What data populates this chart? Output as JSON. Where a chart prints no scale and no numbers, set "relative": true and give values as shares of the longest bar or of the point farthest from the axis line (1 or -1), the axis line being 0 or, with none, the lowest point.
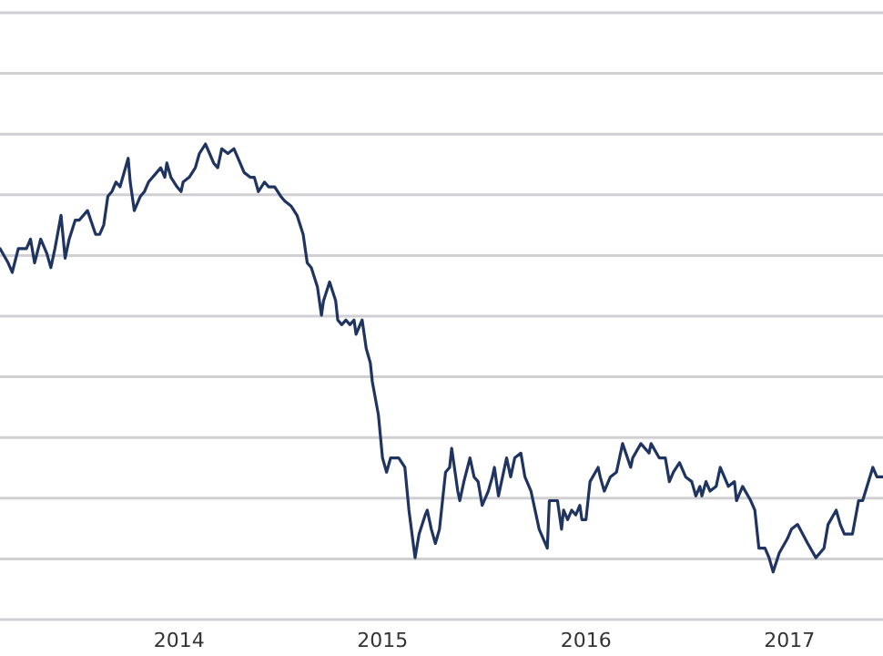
{
  "chart_data": {
    "type": "line",
    "relative": true,
    "grid": "y",
    "xlim": [
      2013.12,
      2017.46
    ],
    "xticks": [
      2014,
      2015,
      2016,
      2017
    ],
    "x": [
      2013.12,
      2013.16,
      2013.18,
      2013.21,
      2013.25,
      2013.27,
      2013.29,
      2013.32,
      2013.35,
      2013.37,
      2013.39,
      2013.42,
      2013.44,
      2013.46,
      2013.49,
      2013.51,
      2013.55,
      2013.59,
      2013.61,
      2013.63,
      2013.65,
      2013.67,
      2013.69,
      2013.71,
      2013.75,
      2013.76,
      2013.78,
      2013.81,
      2013.83,
      2013.85,
      2013.89,
      2013.91,
      2013.93,
      2013.94,
      2013.96,
      2013.99,
      2014.01,
      2014.02,
      2014.05,
      2014.08,
      2014.1,
      2014.13,
      2014.15,
      2014.17,
      2014.19,
      2014.21,
      2014.24,
      2014.27,
      2014.29,
      2014.32,
      2014.35,
      2014.37,
      2014.39,
      2014.42,
      2014.44,
      2014.47,
      2014.5,
      2014.52,
      2014.55,
      2014.58,
      2014.61,
      2014.63,
      2014.65,
      2014.68,
      2014.7,
      2014.71,
      2014.74,
      2014.77,
      2014.78,
      2014.8,
      2014.82,
      2014.84,
      2014.86,
      2014.87,
      2014.9,
      2014.92,
      2014.94,
      2014.95,
      2014.98,
      2015.0,
      2015.02,
      2015.04,
      2015.08,
      2015.11,
      2015.13,
      2015.16,
      2015.18,
      2015.21,
      2015.22,
      2015.24,
      2015.26,
      2015.28,
      2015.29,
      2015.31,
      2015.33,
      2015.34,
      2015.37,
      2015.38,
      2015.4,
      2015.43,
      2015.45,
      2015.47,
      2015.49,
      2015.52,
      2015.54,
      2015.55,
      2015.57,
      2015.61,
      2015.63,
      2015.65,
      2015.68,
      2015.7,
      2015.72,
      2015.73,
      2015.77,
      2015.81,
      2015.82,
      2015.86,
      2015.88,
      2015.89,
      2015.91,
      2015.93,
      2015.95,
      2015.97,
      2015.98,
      2016.0,
      2016.02,
      2016.06,
      2016.07,
      2016.09,
      2016.12,
      2016.15,
      2016.18,
      2016.22,
      2016.23,
      2016.27,
      2016.31,
      2016.32,
      2016.36,
      2016.39,
      2016.41,
      2016.43,
      2016.46,
      2016.49,
      2016.52,
      2016.54,
      2016.56,
      2016.57,
      2016.59,
      2016.61,
      2016.64,
      2016.66,
      2016.68,
      2016.7,
      2016.73,
      2016.74,
      2016.77,
      2016.81,
      2016.83,
      2016.85,
      2016.88,
      2016.9,
      2016.92,
      2016.95,
      2016.99,
      2017.01,
      2017.04,
      2017.09,
      2017.13,
      2017.17,
      2017.19,
      2017.23,
      2017.25,
      2017.27,
      2017.31,
      2017.34,
      2017.36,
      2017.41,
      2017.43,
      2017.46
    ],
    "series": [
      {
        "color": "#1f3461",
        "values": [
          0.78,
          0.75,
          0.73,
          0.78,
          0.78,
          0.8,
          0.75,
          0.8,
          0.77,
          0.74,
          0.78,
          0.85,
          0.76,
          0.8,
          0.84,
          0.84,
          0.86,
          0.81,
          0.81,
          0.83,
          0.89,
          0.9,
          0.92,
          0.91,
          0.97,
          0.92,
          0.86,
          0.89,
          0.9,
          0.92,
          0.94,
          0.95,
          0.93,
          0.96,
          0.93,
          0.91,
          0.9,
          0.92,
          0.93,
          0.95,
          0.98,
          1.0,
          0.98,
          0.96,
          0.95,
          0.99,
          0.98,
          0.99,
          0.97,
          0.94,
          0.93,
          0.93,
          0.9,
          0.92,
          0.91,
          0.91,
          0.89,
          0.88,
          0.87,
          0.85,
          0.81,
          0.75,
          0.74,
          0.7,
          0.64,
          0.67,
          0.71,
          0.67,
          0.63,
          0.62,
          0.63,
          0.62,
          0.63,
          0.6,
          0.63,
          0.57,
          0.54,
          0.5,
          0.43,
          0.34,
          0.31,
          0.34,
          0.34,
          0.32,
          0.23,
          0.13,
          0.18,
          0.22,
          0.23,
          0.19,
          0.16,
          0.19,
          0.23,
          0.31,
          0.32,
          0.36,
          0.27,
          0.25,
          0.29,
          0.34,
          0.3,
          0.29,
          0.24,
          0.27,
          0.3,
          0.32,
          0.26,
          0.34,
          0.3,
          0.34,
          0.35,
          0.3,
          0.28,
          0.27,
          0.19,
          0.15,
          0.25,
          0.25,
          0.19,
          0.23,
          0.21,
          0.23,
          0.22,
          0.24,
          0.21,
          0.21,
          0.29,
          0.32,
          0.3,
          0.27,
          0.3,
          0.31,
          0.37,
          0.32,
          0.34,
          0.37,
          0.35,
          0.37,
          0.34,
          0.34,
          0.29,
          0.31,
          0.33,
          0.3,
          0.29,
          0.26,
          0.28,
          0.26,
          0.29,
          0.27,
          0.28,
          0.32,
          0.3,
          0.28,
          0.29,
          0.25,
          0.28,
          0.25,
          0.23,
          0.15,
          0.15,
          0.13,
          0.1,
          0.14,
          0.17,
          0.19,
          0.2,
          0.16,
          0.13,
          0.15,
          0.2,
          0.23,
          0.2,
          0.18,
          0.18,
          0.25,
          0.25,
          0.32,
          0.3,
          0.3
        ]
      }
    ]
  }
}
